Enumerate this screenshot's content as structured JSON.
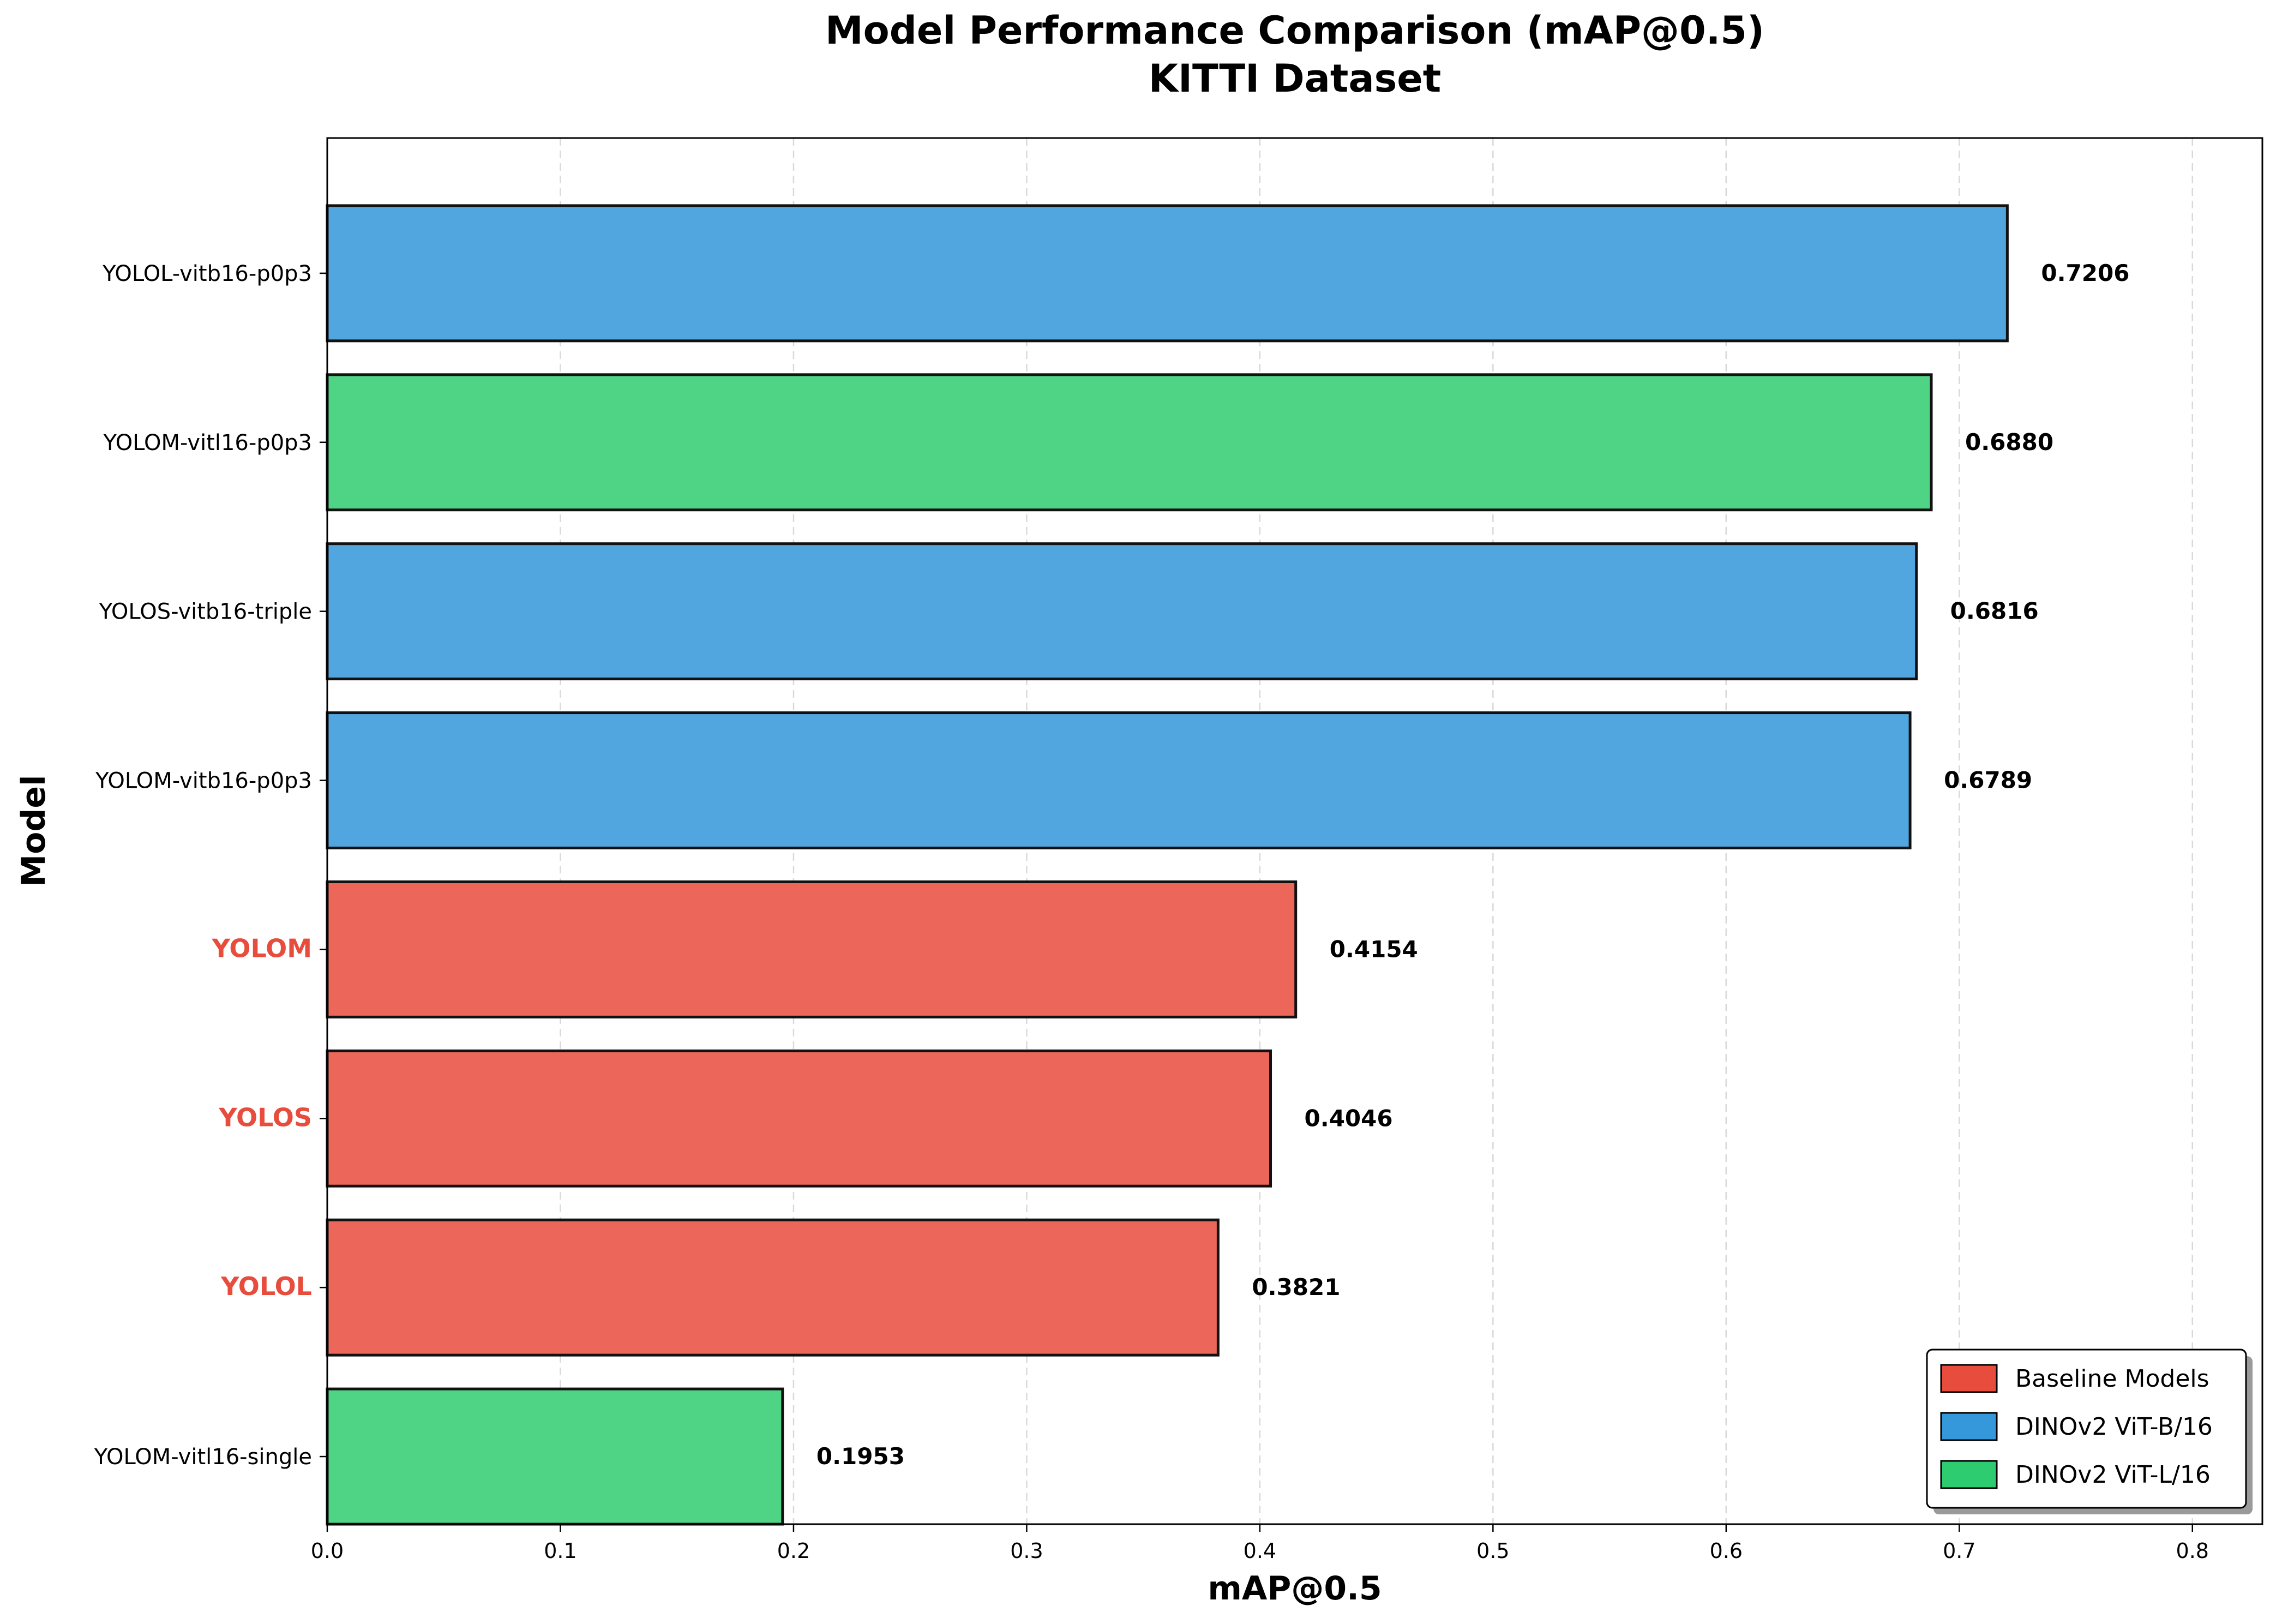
{
  "chart_data": {
    "type": "bar",
    "orientation": "horizontal",
    "title": "Model Performance Comparison (mAP@0.5)",
    "subtitle": "KITTI Dataset",
    "xlabel": "mAP@0.5",
    "ylabel": "Model",
    "xlim": [
      0,
      0.83
    ],
    "xticks": [
      "0.0",
      "0.1",
      "0.2",
      "0.3",
      "0.4",
      "0.5",
      "0.6",
      "0.7",
      "0.8"
    ],
    "grid": "vertical dashed",
    "legend_position": "bottom-right",
    "categories": [
      {
        "label": "YOLOL-vitb16-p0p3",
        "value": 0.7206,
        "value_label": "0.7206",
        "group": "DINOv2 ViT-B/16"
      },
      {
        "label": "YOLOM-vitl16-p0p3",
        "value": 0.688,
        "value_label": "0.6880",
        "group": "DINOv2 ViT-L/16"
      },
      {
        "label": "YOLOS-vitb16-triple",
        "value": 0.6816,
        "value_label": "0.6816",
        "group": "DINOv2 ViT-B/16"
      },
      {
        "label": "YOLOM-vitb16-p0p3",
        "value": 0.6789,
        "value_label": "0.6789",
        "group": "DINOv2 ViT-B/16"
      },
      {
        "label": "YOLOM",
        "value": 0.4154,
        "value_label": "0.4154",
        "group": "Baseline Models"
      },
      {
        "label": "YOLOS",
        "value": 0.4046,
        "value_label": "0.4046",
        "group": "Baseline Models"
      },
      {
        "label": "YOLOL",
        "value": 0.3821,
        "value_label": "0.3821",
        "group": "Baseline Models"
      },
      {
        "label": "YOLOM-vitl16-single",
        "value": 0.1953,
        "value_label": "0.1953",
        "group": "DINOv2 ViT-L/16"
      }
    ],
    "legend": [
      {
        "name": "Baseline Models",
        "color": "#e74c3c"
      },
      {
        "name": "DINOv2 ViT-B/16",
        "color": "#3498db"
      },
      {
        "name": "DINOv2 ViT-L/16",
        "color": "#2ecc71"
      }
    ],
    "colors": {
      "Baseline Models": "#ec6759",
      "DINOv2 ViT-B/16": "#52a6e0",
      "DINOv2 ViT-L/16": "#4fd384",
      "baseline_label": "#e74c3c"
    }
  }
}
